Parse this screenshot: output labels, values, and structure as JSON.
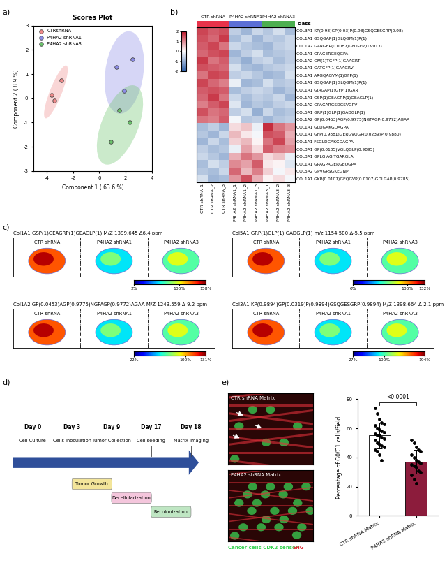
{
  "panel_labels": [
    "a)",
    "b)",
    "c)",
    "d)",
    "e)"
  ],
  "chart_data": [
    {
      "type": "scatter",
      "title": "Scores Plot",
      "x_label": "Component 1 ( 63.6 %)",
      "y_label": "Component 2 ( 8.9 %)",
      "marker": "o",
      "legend": "upper left",
      "xlim": [
        -5,
        4
      ],
      "xticks": [
        -4,
        -2,
        0,
        2,
        4
      ],
      "ylim": [
        -3,
        3
      ],
      "yticks": [
        -3,
        -2,
        -1,
        0,
        1,
        2,
        3
      ],
      "series": [
        {
          "name": "CTRshRNA",
          "color": "#f08a8a",
          "x": [
            -3.6,
            -2.9,
            -3.4
          ],
          "values": [
            0.15,
            0.75,
            -0.1
          ]
        },
        {
          "name": "P4HA2 shRNA1",
          "color": "#8c8ce6",
          "x": [
            1.3,
            2.5,
            1.9
          ],
          "values": [
            1.3,
            1.6,
            0.3
          ]
        },
        {
          "name": "P4HA2 shRNA3",
          "color": "#6cc46c",
          "x": [
            1.5,
            0.9,
            2.3
          ],
          "values": [
            -0.5,
            -1.8,
            -1.0
          ]
        }
      ]
    },
    {
      "type": "heatmap",
      "class_label": "class",
      "groups": [
        {
          "name": "CTR shRNA",
          "color": "#e8334a",
          "columns": [
            "CTR shRNA_1",
            "CTR shRNA_2",
            "CTR shRNA_3"
          ]
        },
        {
          "name": "P4HA2 shRNA1",
          "color": "#5b6fd6",
          "columns": [
            "P4HA2 shRNA1_1",
            "P4HA2 shRNA1_2",
            "P4HA2 shRNA1_3"
          ]
        },
        {
          "name": "P4HA2 shRNA3",
          "color": "#4caf50",
          "columns": [
            "P4HA2 shRNA3_1",
            "P4HA2 shRNA3_2",
            "P4HA2 shRNA3_3"
          ]
        }
      ],
      "rows": [
        "COL3A1 KP(0.98)GP(0.03)P(0.98)GSQGESGRP(0.98)",
        "COL1A1 GSQGAP(1)GLQGM(1)P(1)",
        "COL1A2 GARGEP(0.0087)GNIGFP(0.9913)",
        "COL1A1 GPAGERGEQGPA",
        "COL1A2 GM(1)TGFP(1)GAAGRT",
        "COL1A1 GATGFP(1)GAAGRV",
        "COL1A1 ARGQAGVM(1)GFP(1)",
        "COL1A1 GSQGAP(1)GLQGM(1)P(1)",
        "COL1A1 GIAGAP(1)GFP(1)GAR",
        "COL1A1 GSP(1)GEAGRP(1)GEAGLP(1)",
        "COL1A2 GPAGARGSDGSVGPV",
        "COL5A1 GRP(1)GLP(1)GADGLP(1)",
        "COL1A2 GP(0.0453)AGP(0.9775)NGFAGP(0.9772)AGAA",
        "COL1A1 GLDGAKGDAGPA",
        "COL1A1 GFP(0.9881)GERGVQGP(0.0239)P(0.9880)",
        "COL1A1 FSGLDGAKGDAGPA",
        "COL3A1 GP(0.0105)VGLQGLP(0.9895)",
        "COL3A1 GPLGIAGITGARGLA",
        "COL1A1 GPAGPAGERGEQGPA",
        "COL5A2 GPVGPSGKEGNP",
        "COL1A1 GKP(0.0107)GEQGVP(0.0107)GDLGAP(0.9785)"
      ],
      "cells": [
        [
          1.6,
          1.4,
          1.5,
          -0.6,
          -0.9,
          -0.5,
          -0.7,
          -0.4,
          -0.8
        ],
        [
          1.5,
          1.3,
          1.7,
          -0.8,
          -0.5,
          -0.9,
          -0.6,
          -0.7,
          -0.5
        ],
        [
          1.4,
          1.6,
          1.2,
          -0.5,
          -0.7,
          -0.8,
          -0.9,
          -0.6,
          -0.5
        ],
        [
          1.3,
          1.5,
          1.6,
          -0.9,
          -0.6,
          -0.4,
          -0.8,
          -0.7,
          -0.6
        ],
        [
          1.7,
          1.2,
          1.4,
          -0.7,
          -1.0,
          -0.6,
          -0.5,
          -0.8,
          -0.6
        ],
        [
          1.5,
          1.4,
          1.3,
          -0.4,
          -0.8,
          -0.9,
          -0.7,
          -0.6,
          -0.5
        ],
        [
          1.2,
          1.6,
          1.5,
          -0.6,
          -0.5,
          -0.7,
          -0.9,
          -0.8,
          -0.4
        ],
        [
          1.6,
          1.3,
          1.1,
          -0.2,
          -0.9,
          -0.8,
          -0.4,
          -0.7,
          -0.6
        ],
        [
          1.4,
          1.5,
          1.4,
          -0.8,
          -0.6,
          -0.5,
          -0.6,
          -0.9,
          -0.7
        ],
        [
          1.3,
          1.7,
          1.2,
          -0.5,
          -0.8,
          -0.6,
          -0.7,
          -0.5,
          -0.9
        ],
        [
          1.1,
          1.4,
          1.6,
          -0.3,
          -0.9,
          -0.7,
          -0.8,
          -0.6,
          -0.5
        ],
        [
          1.5,
          1.2,
          1.3,
          -0.6,
          -0.4,
          -1.0,
          -0.5,
          -0.8,
          -0.7
        ],
        [
          1.2,
          1.1,
          1.4,
          -0.1,
          -0.7,
          -0.6,
          -0.9,
          -0.7,
          -0.6
        ],
        [
          -0.8,
          -0.6,
          -0.9,
          0.3,
          0.5,
          -0.2,
          1.8,
          1.2,
          0.9
        ],
        [
          -0.7,
          -0.9,
          -0.5,
          0.6,
          0.2,
          -0.1,
          1.5,
          1.4,
          0.7
        ],
        [
          -0.9,
          -0.5,
          -0.8,
          0.4,
          0.6,
          0.1,
          1.2,
          1.6,
          0.8
        ],
        [
          -0.6,
          -0.8,
          -0.7,
          -0.2,
          0.8,
          0.3,
          1.4,
          1.1,
          1.0
        ],
        [
          -0.5,
          -0.7,
          -0.9,
          0.7,
          1.2,
          0.9,
          0.3,
          0.5,
          -0.2
        ],
        [
          -0.8,
          -0.4,
          -0.6,
          1.0,
          0.8,
          1.4,
          0.2,
          0.1,
          -0.3
        ],
        [
          -0.7,
          -0.8,
          -0.5,
          1.3,
          0.6,
          1.1,
          0.4,
          -0.1,
          0.2
        ],
        [
          -0.4,
          -0.9,
          -0.8,
          0.9,
          1.5,
          0.7,
          0.1,
          0.3,
          -0.1
        ]
      ],
      "colorbar": {
        "range": [
          -2,
          2
        ],
        "ticks": [
          -2,
          -1,
          0,
          1,
          2
        ]
      }
    },
    {
      "type": "bar",
      "y_label": "Percentage of G0/G1 cells/field",
      "categories": [
        "CTR shRNA Matrix",
        "P4HA2 shRNA Matrix"
      ],
      "values": [
        55,
        37
      ],
      "error": [
        9,
        8
      ],
      "points": [
        [
          74,
          70,
          66,
          64,
          63,
          62,
          60,
          59,
          58,
          57,
          56,
          55,
          55,
          54,
          53,
          52,
          50,
          49,
          48,
          47,
          45,
          44,
          42,
          38
        ],
        [
          52,
          50,
          47,
          45,
          44,
          42,
          40,
          38,
          37,
          36,
          35,
          34,
          33,
          31,
          30,
          28,
          25,
          22
        ]
      ],
      "colors": [
        "#ffffff",
        "#8c1c3c"
      ],
      "ylim": [
        0,
        80
      ],
      "yticks": [
        0,
        20,
        40,
        60,
        80
      ],
      "annotation": "<0.0001"
    }
  ],
  "imaging": {
    "columns": [
      "CTR shRNA",
      "P4HA2 shRNA1",
      "P4HA2 shRNA3"
    ],
    "panels": [
      {
        "title": "Col1A1 GSP(1)GEAGRP(1)GEAGLP(1) M/Z 1399.645 Δ6.4 ppm",
        "colorbar": {
          "range": [
            2,
            158
          ],
          "ticks": [
            {
              "value": 2,
              "label": "2%"
            },
            {
              "value": 100,
              "label": "100%"
            },
            {
              "value": 158,
              "label": "158%"
            }
          ]
        }
      },
      {
        "title": "Col5A1 GRP(1)GLP(1) GADGLP(1) m/z 1154.580 Δ-5.5 ppm",
        "colorbar": {
          "range": [
            0,
            132
          ],
          "ticks": [
            {
              "value": 0,
              "label": "0%"
            },
            {
              "value": 100,
              "label": "100%"
            },
            {
              "value": 132,
              "label": "132%"
            }
          ]
        }
      },
      {
        "title": "Col1A2 GP(0.0453)AGP(0.9775)NGFAGP(0.9772)AGAA M/Z 1243.559 Δ-9.2 ppm",
        "colorbar": {
          "range": [
            22,
            131
          ],
          "ticks": [
            {
              "value": 22,
              "label": "22%"
            },
            {
              "value": 100,
              "label": "100%"
            },
            {
              "value": 131,
              "label": "131%"
            }
          ]
        }
      },
      {
        "title": "Col3A1 KP(0.9894)GP(0.0319)P(0.9894)GSQGESGRP(0.9894) M/Z 1398.664 Δ-2.1 ppm",
        "colorbar": {
          "range": [
            27,
            194
          ],
          "ticks": [
            {
              "value": 27,
              "label": "27%"
            },
            {
              "value": 100,
              "label": "100%"
            },
            {
              "value": 194,
              "label": "194%"
            }
          ]
        }
      }
    ]
  },
  "timeline": {
    "stages": [
      {
        "day": "Day 0",
        "event": "Cell Culture"
      },
      {
        "day": "Day 3",
        "event": "Cells Inoculation"
      },
      {
        "day": "Day 9",
        "event": "Tumor Collection"
      },
      {
        "day": "Day 17",
        "event": "Cell seeding"
      },
      {
        "day": "Day 18",
        "event": "Matrix Imaging"
      }
    ],
    "phases": [
      {
        "name": "Tumor Growth",
        "from": "Day 3",
        "to": "Day 9",
        "color": "#f3e59a"
      },
      {
        "name": "Decellularization",
        "from": "Day 9",
        "to": "Day 17",
        "color": "#f4c6dc"
      },
      {
        "name": "Recolonization",
        "from": "Day 17",
        "to": "Day 18",
        "color": "#bfe6c3"
      }
    ]
  },
  "micrographs": {
    "panels": [
      "CTR shRNA Matrix",
      "P4HA2 shRNA Matrix"
    ],
    "channels": [
      {
        "name": "Cancer cells CDK2 sensor",
        "color": "#39d353"
      },
      {
        "name": "SHG",
        "color": "#e0303a"
      }
    ]
  }
}
